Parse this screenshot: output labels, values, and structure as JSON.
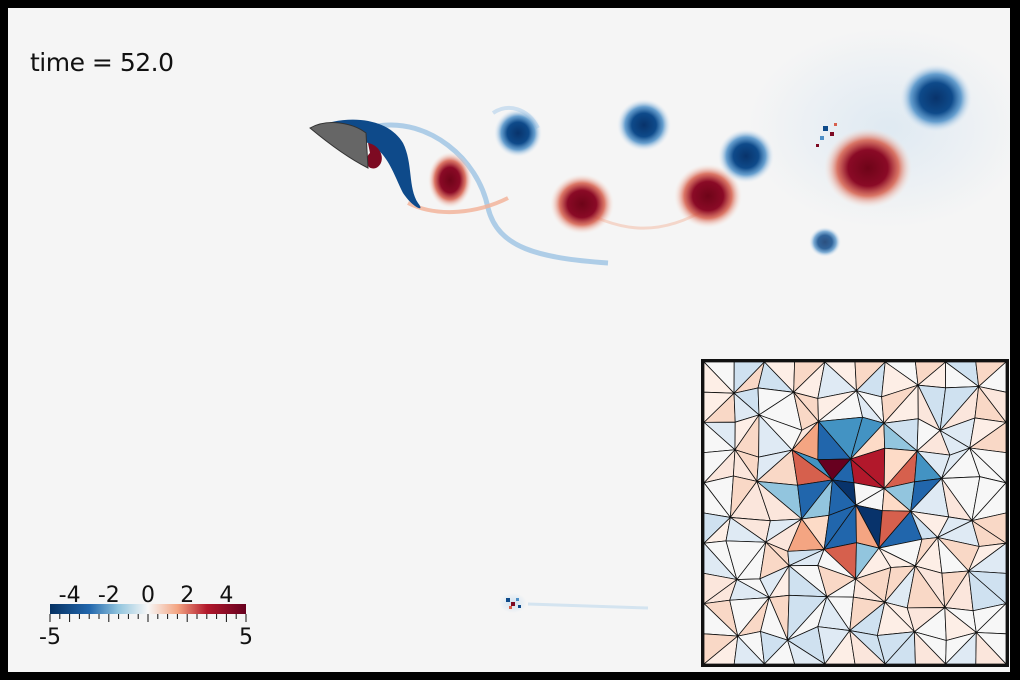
{
  "time_label": "time = 52.0",
  "colorbar": {
    "ticks": [
      "-4",
      "-2",
      "0",
      "2",
      "4"
    ],
    "tick_values": [
      -4,
      -2,
      0,
      2,
      4
    ],
    "min_label": "-5",
    "max_label": "5",
    "range": [
      -5,
      5
    ],
    "colormap": "diverging blue-white-red"
  },
  "colors": {
    "background": "#f5f5f5",
    "frame": "#000000",
    "negative": "#0b3f7a",
    "positive": "#7d0a22",
    "airfoil": "#666666"
  }
}
